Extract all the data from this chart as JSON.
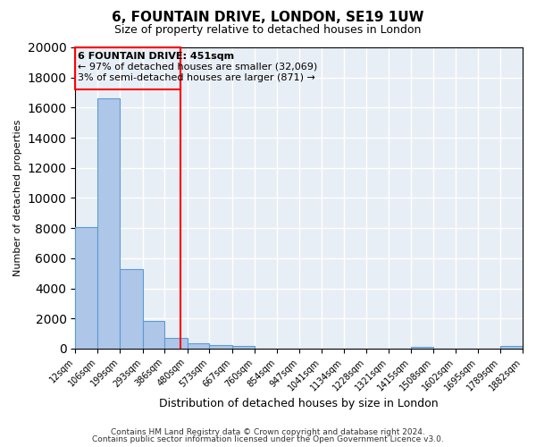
{
  "title": "6, FOUNTAIN DRIVE, LONDON, SE19 1UW",
  "subtitle": "Size of property relative to detached houses in London",
  "xlabel": "Distribution of detached houses by size in London",
  "ylabel": "Number of detached properties",
  "bar_color": "#aec6e8",
  "bar_edge_color": "#5b9bd5",
  "vline_x": 451,
  "vline_color": "red",
  "annotation_title": "6 FOUNTAIN DRIVE: 451sqm",
  "annotation_line1": "← 97% of detached houses are smaller (32,069)",
  "annotation_line2": "3% of semi-detached houses are larger (871) →",
  "bin_edges": [
    12,
    106,
    199,
    293,
    386,
    480,
    573,
    667,
    760,
    854,
    947,
    1041,
    1134,
    1228,
    1321,
    1415,
    1508,
    1602,
    1695,
    1789,
    1882
  ],
  "bin_labels": [
    "12sqm",
    "106sqm",
    "199sqm",
    "293sqm",
    "386sqm",
    "480sqm",
    "573sqm",
    "667sqm",
    "760sqm",
    "854sqm",
    "947sqm",
    "1041sqm",
    "1134sqm",
    "1228sqm",
    "1321sqm",
    "1415sqm",
    "1508sqm",
    "1602sqm",
    "1695sqm",
    "1789sqm",
    "1882sqm"
  ],
  "bar_heights": [
    8100,
    16600,
    5300,
    1850,
    700,
    350,
    250,
    200,
    0,
    0,
    0,
    0,
    0,
    0,
    0,
    120,
    0,
    0,
    0,
    180
  ],
  "ylim": [
    0,
    20000
  ],
  "yticks": [
    0,
    2000,
    4000,
    6000,
    8000,
    10000,
    12000,
    14000,
    16000,
    18000,
    20000
  ],
  "footer_line1": "Contains HM Land Registry data © Crown copyright and database right 2024.",
  "footer_line2": "Contains public sector information licensed under the Open Government Licence v3.0.",
  "bg_color": "#e8eef5"
}
